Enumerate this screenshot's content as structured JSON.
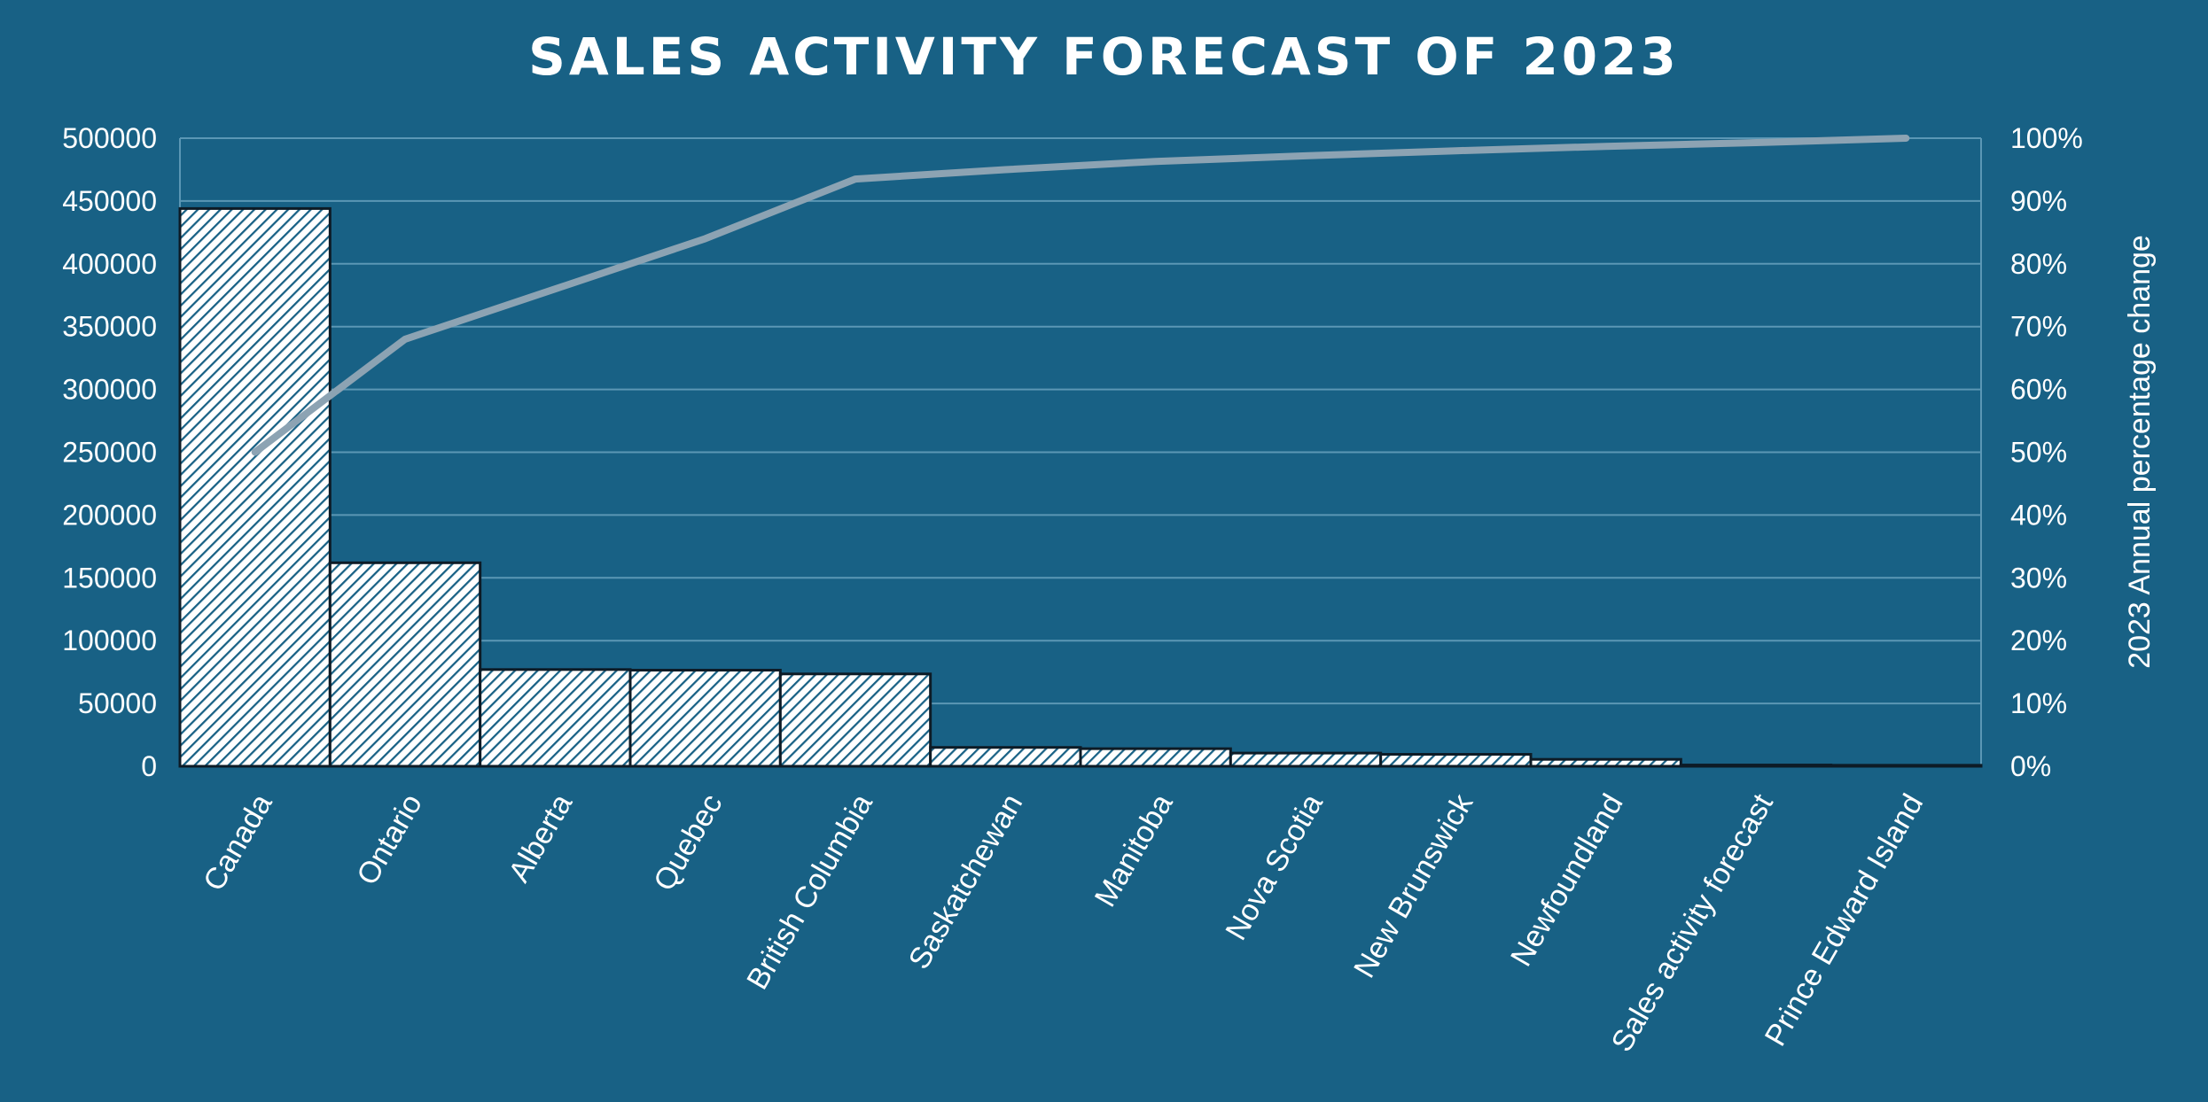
{
  "chart_data": {
    "type": "bar",
    "title": "SALES ACTIVITY FORECAST OF 2023",
    "categories": [
      "Canada",
      "Ontario",
      "Alberta",
      "Quebec",
      "British Columbia",
      "Saskatchewan",
      "Manitoba",
      "Nova Scotia",
      "New Brunswick",
      "Newfoundland",
      "Sales activity forecast",
      "Prince Edward Island"
    ],
    "series": [
      {
        "type": "bar",
        "values": [
          444000,
          162000,
          77000,
          76500,
          73500,
          15000,
          14000,
          10500,
          9500,
          5500,
          1000,
          800
        ]
      },
      {
        "type": "line",
        "axis": "right",
        "values": [
          0.5,
          0.68,
          0.76,
          0.84,
          0.935,
          0.95,
          0.963,
          0.972,
          0.98,
          0.987,
          0.993,
          1.0
        ]
      }
    ],
    "ylim": [
      0,
      500000
    ],
    "yticks": [
      "0",
      "50000",
      "100000",
      "150000",
      "200000",
      "250000",
      "300000",
      "350000",
      "400000",
      "450000",
      "500000"
    ],
    "y2lim": [
      0,
      1
    ],
    "y2ticks": [
      "0%",
      "10%",
      "20%",
      "30%",
      "40%",
      "50%",
      "60%",
      "70%",
      "80%",
      "90%",
      "100%"
    ],
    "ylabel_right": "2023 Annual percentage change",
    "grid": true,
    "colors": {
      "background": "#186185",
      "bar_fill": "#ffffff",
      "bar_hatch": "#186185",
      "bar_stroke": "#0d1b26",
      "line": "#8ca3b3",
      "grid": "#5b97b5"
    }
  }
}
